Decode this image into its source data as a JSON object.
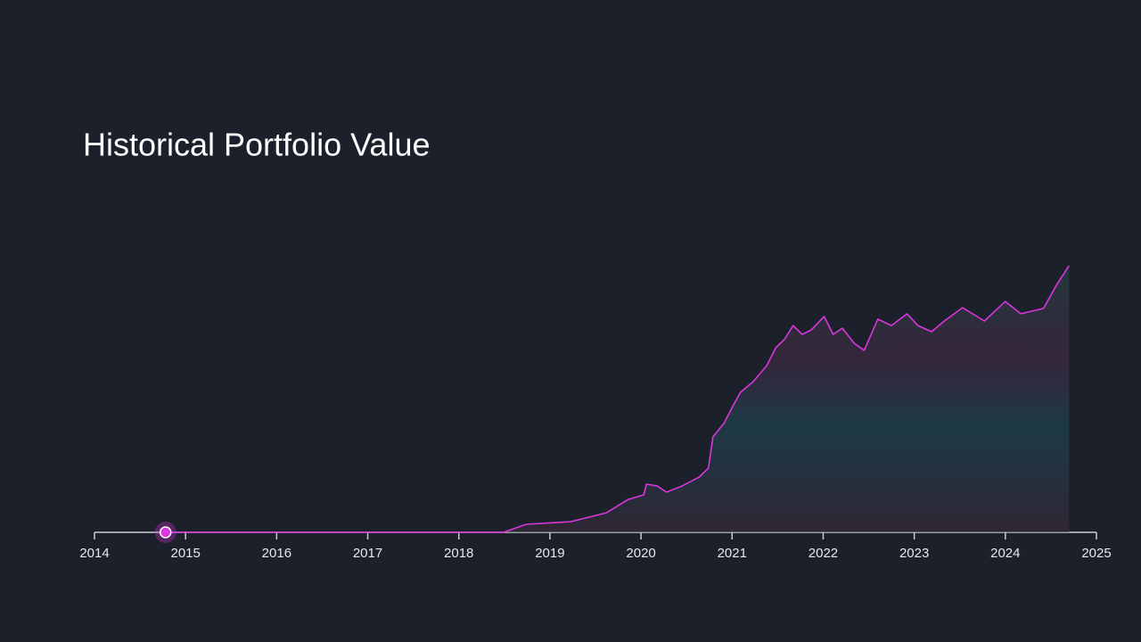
{
  "chart_data": {
    "type": "line",
    "title": "Historical Portfolio Value",
    "x": [
      2014.78,
      2018.49,
      2018.74,
      2019.23,
      2019.62,
      2019.86,
      2020.03,
      2020.06,
      2020.18,
      2020.28,
      2020.45,
      2020.64,
      2020.74,
      2020.79,
      2020.91,
      2021.01,
      2021.09,
      2021.23,
      2021.38,
      2021.48,
      2021.58,
      2021.67,
      2021.77,
      2021.87,
      2022.01,
      2022.11,
      2022.21,
      2022.34,
      2022.45,
      2022.6,
      2022.75,
      2022.92,
      2023.04,
      2023.19,
      2023.33,
      2023.53,
      2023.77,
      2024.0,
      2024.17,
      2024.42,
      2024.56,
      2024.7
    ],
    "series": [
      {
        "color": "#d936de",
        "values": [
          0,
          0,
          3,
          4,
          7.3,
          12.3,
          14,
          18,
          17.3,
          15,
          17.3,
          20.7,
          24,
          35.7,
          40.7,
          47.3,
          52.3,
          56.3,
          62.3,
          69,
          72.3,
          77.3,
          74,
          75.7,
          80.7,
          74,
          76.3,
          70.7,
          68,
          79.7,
          77.3,
          81.7,
          77.3,
          75,
          79,
          84,
          79,
          86.3,
          81.7,
          83.7,
          92.3,
          99.7
        ]
      }
    ],
    "xlim": [
      2014,
      2025
    ],
    "xticks": [
      2014,
      2015,
      2016,
      2017,
      2018,
      2019,
      2020,
      2021,
      2022,
      2023,
      2024,
      2025
    ],
    "ylim": [
      0,
      100
    ]
  }
}
